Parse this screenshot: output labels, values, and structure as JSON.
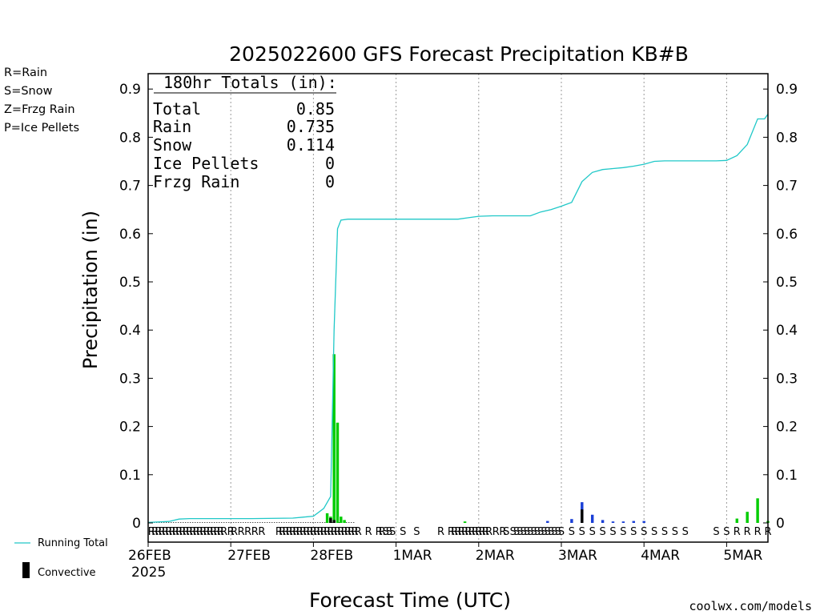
{
  "title": "2025022600 GFS Forecast Precipitation KB#B",
  "legend_types": [
    {
      "label": "R=Rain",
      "color": "#22cc22"
    },
    {
      "label": "S=Snow",
      "color": "#3355ee"
    },
    {
      "label": "Z=Frzg Rain",
      "color": "#ee8833"
    },
    {
      "label": "P=Ice Pellets",
      "color": "#ee2288"
    }
  ],
  "totals": {
    "header": "180hr Totals (in):",
    "rows": [
      {
        "label": "Total",
        "value": "0.85"
      },
      {
        "label": "Rain",
        "value": "0.735"
      },
      {
        "label": "Snow",
        "value": "0.114"
      },
      {
        "label": "Ice Pellets",
        "value": "0"
      },
      {
        "label": "Frzg Rain",
        "value": "0"
      }
    ]
  },
  "ylabel": "Precipitation (in)",
  "xlabel": "Forecast Time (UTC)",
  "year_label": "2025",
  "credit": "coolwx.com/models",
  "bottom_legend": {
    "running_total": "Running Total",
    "convective": "Convective"
  },
  "colors": {
    "rain": "#00cc00",
    "snow": "#1a3fd6",
    "convective": "#000000",
    "running_total": "#20c8c8",
    "rain_text": "#22cc22",
    "snow_text": "#3355ee"
  },
  "chart_data": {
    "type": "bar",
    "x_unit": "forecast hour",
    "xlim": [
      0,
      180
    ],
    "ylim": [
      0,
      0.92
    ],
    "yticks": [
      0,
      0.1,
      0.2,
      0.3,
      0.4,
      0.5,
      0.6,
      0.7,
      0.8,
      0.9
    ],
    "ytick_labels": [
      "0",
      "0.1",
      "0.2",
      "0.3",
      "0.4",
      "0.5",
      "0.6",
      "0.7",
      "0.8",
      "0.9"
    ],
    "grid": "vertical dotted at day boundaries",
    "day_ticks": [
      {
        "hour": 0,
        "label": "26FEB"
      },
      {
        "hour": 24,
        "label": "27FEB"
      },
      {
        "hour": 48,
        "label": "28FEB"
      },
      {
        "hour": 72,
        "label": "1MAR"
      },
      {
        "hour": 96,
        "label": "2MAR"
      },
      {
        "hour": 120,
        "label": "3MAR"
      },
      {
        "hour": 144,
        "label": "4MAR"
      },
      {
        "hour": 168,
        "label": "5MAR"
      }
    ],
    "bars": [
      {
        "hour": 52,
        "value": 0.02,
        "type": "rain"
      },
      {
        "hour": 53,
        "value": 0.013,
        "type": "rain"
      },
      {
        "hour": 54,
        "value": 0.35,
        "type": "rain"
      },
      {
        "hour": 55,
        "value": 0.208,
        "type": "rain"
      },
      {
        "hour": 56,
        "value": 0.013,
        "type": "rain"
      },
      {
        "hour": 57,
        "value": 0.006,
        "type": "rain"
      },
      {
        "hour": 92,
        "value": 0.003,
        "type": "rain"
      },
      {
        "hour": 116,
        "value": 0.004,
        "type": "snow"
      },
      {
        "hour": 123,
        "value": 0.008,
        "type": "snow"
      },
      {
        "hour": 126,
        "value": 0.043,
        "type": "snow"
      },
      {
        "hour": 129,
        "value": 0.017,
        "type": "snow"
      },
      {
        "hour": 132,
        "value": 0.006,
        "type": "snow"
      },
      {
        "hour": 135,
        "value": 0.003,
        "type": "snow"
      },
      {
        "hour": 138,
        "value": 0.003,
        "type": "snow"
      },
      {
        "hour": 141,
        "value": 0.004,
        "type": "snow"
      },
      {
        "hour": 144,
        "value": 0.004,
        "type": "snow"
      },
      {
        "hour": 171,
        "value": 0.009,
        "type": "rain"
      },
      {
        "hour": 174,
        "value": 0.023,
        "type": "rain"
      },
      {
        "hour": 177,
        "value": 0.051,
        "type": "rain"
      },
      {
        "hour": 180,
        "value": 0.004,
        "type": "rain"
      }
    ],
    "convective": [
      {
        "hour": 53,
        "value": 0.01
      },
      {
        "hour": 54,
        "value": 0.006
      },
      {
        "hour": 126,
        "value": 0.028
      }
    ],
    "series": [
      {
        "name": "Running Total",
        "color": "#20c8c8",
        "points": [
          [
            0,
            0.001
          ],
          [
            6,
            0.003
          ],
          [
            9,
            0.008
          ],
          [
            12,
            0.009
          ],
          [
            30,
            0.009
          ],
          [
            42,
            0.01
          ],
          [
            45,
            0.012
          ],
          [
            48,
            0.014
          ],
          [
            51,
            0.03
          ],
          [
            53,
            0.055
          ],
          [
            54,
            0.4
          ],
          [
            55,
            0.61
          ],
          [
            56,
            0.628
          ],
          [
            58,
            0.63
          ],
          [
            90,
            0.63
          ],
          [
            93,
            0.633
          ],
          [
            96,
            0.636
          ],
          [
            100,
            0.637
          ],
          [
            111,
            0.637
          ],
          [
            114,
            0.645
          ],
          [
            117,
            0.65
          ],
          [
            120,
            0.657
          ],
          [
            123,
            0.665
          ],
          [
            126,
            0.708
          ],
          [
            129,
            0.727
          ],
          [
            132,
            0.733
          ],
          [
            135,
            0.735
          ],
          [
            138,
            0.737
          ],
          [
            141,
            0.74
          ],
          [
            144,
            0.744
          ],
          [
            147,
            0.75
          ],
          [
            150,
            0.751
          ],
          [
            165,
            0.751
          ],
          [
            168,
            0.752
          ],
          [
            171,
            0.762
          ],
          [
            174,
            0.785
          ],
          [
            177,
            0.838
          ],
          [
            179,
            0.838
          ],
          [
            180,
            0.848
          ]
        ]
      }
    ],
    "ptype_markers": [
      {
        "hour": 1,
        "type": "R"
      },
      {
        "hour": 2,
        "type": "R"
      },
      {
        "hour": 3,
        "type": "R"
      },
      {
        "hour": 4,
        "type": "R"
      },
      {
        "hour": 5,
        "type": "R"
      },
      {
        "hour": 6,
        "type": "R"
      },
      {
        "hour": 7,
        "type": "R"
      },
      {
        "hour": 8,
        "type": "R"
      },
      {
        "hour": 9,
        "type": "R"
      },
      {
        "hour": 10,
        "type": "R"
      },
      {
        "hour": 11,
        "type": "R"
      },
      {
        "hour": 12,
        "type": "R"
      },
      {
        "hour": 13,
        "type": "R"
      },
      {
        "hour": 14,
        "type": "R"
      },
      {
        "hour": 15,
        "type": "R"
      },
      {
        "hour": 16,
        "type": "R"
      },
      {
        "hour": 17,
        "type": "R"
      },
      {
        "hour": 18,
        "type": "R"
      },
      {
        "hour": 19,
        "type": "R"
      },
      {
        "hour": 20,
        "type": "R"
      },
      {
        "hour": 21,
        "type": "R"
      },
      {
        "hour": 22,
        "type": "R"
      },
      {
        "hour": 24,
        "type": "R"
      },
      {
        "hour": 25,
        "type": "R"
      },
      {
        "hour": 27,
        "type": "R"
      },
      {
        "hour": 29,
        "type": "R"
      },
      {
        "hour": 31,
        "type": "R"
      },
      {
        "hour": 33,
        "type": "R"
      },
      {
        "hour": 38,
        "type": "R"
      },
      {
        "hour": 39,
        "type": "R"
      },
      {
        "hour": 40,
        "type": "R"
      },
      {
        "hour": 41,
        "type": "R"
      },
      {
        "hour": 42,
        "type": "R"
      },
      {
        "hour": 43,
        "type": "R"
      },
      {
        "hour": 44,
        "type": "R"
      },
      {
        "hour": 45,
        "type": "R"
      },
      {
        "hour": 46,
        "type": "R"
      },
      {
        "hour": 47,
        "type": "R"
      },
      {
        "hour": 48,
        "type": "R"
      },
      {
        "hour": 49,
        "type": "R"
      },
      {
        "hour": 50,
        "type": "R"
      },
      {
        "hour": 51,
        "type": "R"
      },
      {
        "hour": 52,
        "type": "R"
      },
      {
        "hour": 53,
        "type": "R"
      },
      {
        "hour": 54,
        "type": "R"
      },
      {
        "hour": 55,
        "type": "R"
      },
      {
        "hour": 56,
        "type": "R"
      },
      {
        "hour": 57,
        "type": "R"
      },
      {
        "hour": 58,
        "type": "R"
      },
      {
        "hour": 59,
        "type": "R"
      },
      {
        "hour": 60,
        "type": "R"
      },
      {
        "hour": 61,
        "type": "R"
      },
      {
        "hour": 64,
        "type": "R"
      },
      {
        "hour": 67,
        "type": "R"
      },
      {
        "hour": 68,
        "type": "R"
      },
      {
        "hour": 69,
        "type": "S"
      },
      {
        "hour": 70,
        "type": "S"
      },
      {
        "hour": 71,
        "type": "S"
      },
      {
        "hour": 74,
        "type": "S"
      },
      {
        "hour": 78,
        "type": "S"
      },
      {
        "hour": 85,
        "type": "R"
      },
      {
        "hour": 88,
        "type": "R"
      },
      {
        "hour": 89,
        "type": "R"
      },
      {
        "hour": 90,
        "type": "R"
      },
      {
        "hour": 91,
        "type": "R"
      },
      {
        "hour": 92,
        "type": "R"
      },
      {
        "hour": 93,
        "type": "R"
      },
      {
        "hour": 94,
        "type": "R"
      },
      {
        "hour": 95,
        "type": "R"
      },
      {
        "hour": 96,
        "type": "R"
      },
      {
        "hour": 97,
        "type": "R"
      },
      {
        "hour": 98,
        "type": "R"
      },
      {
        "hour": 99,
        "type": "R"
      },
      {
        "hour": 101,
        "type": "R"
      },
      {
        "hour": 103,
        "type": "R"
      },
      {
        "hour": 104,
        "type": "S"
      },
      {
        "hour": 106,
        "type": "S"
      },
      {
        "hour": 107,
        "type": "S"
      },
      {
        "hour": 108,
        "type": "S"
      },
      {
        "hour": 109,
        "type": "S"
      },
      {
        "hour": 110,
        "type": "S"
      },
      {
        "hour": 111,
        "type": "S"
      },
      {
        "hour": 112,
        "type": "S"
      },
      {
        "hour": 113,
        "type": "S"
      },
      {
        "hour": 114,
        "type": "S"
      },
      {
        "hour": 115,
        "type": "S"
      },
      {
        "hour": 116,
        "type": "S"
      },
      {
        "hour": 117,
        "type": "S"
      },
      {
        "hour": 118,
        "type": "S"
      },
      {
        "hour": 119,
        "type": "S"
      },
      {
        "hour": 120,
        "type": "S"
      },
      {
        "hour": 123,
        "type": "S"
      },
      {
        "hour": 126,
        "type": "S"
      },
      {
        "hour": 129,
        "type": "S"
      },
      {
        "hour": 132,
        "type": "S"
      },
      {
        "hour": 135,
        "type": "S"
      },
      {
        "hour": 138,
        "type": "S"
      },
      {
        "hour": 141,
        "type": "S"
      },
      {
        "hour": 144,
        "type": "S"
      },
      {
        "hour": 147,
        "type": "S"
      },
      {
        "hour": 150,
        "type": "S"
      },
      {
        "hour": 153,
        "type": "S"
      },
      {
        "hour": 156,
        "type": "S"
      },
      {
        "hour": 165,
        "type": "S"
      },
      {
        "hour": 168,
        "type": "S"
      },
      {
        "hour": 171,
        "type": "R"
      },
      {
        "hour": 174,
        "type": "R"
      },
      {
        "hour": 177,
        "type": "R"
      },
      {
        "hour": 180,
        "type": "R"
      }
    ]
  }
}
